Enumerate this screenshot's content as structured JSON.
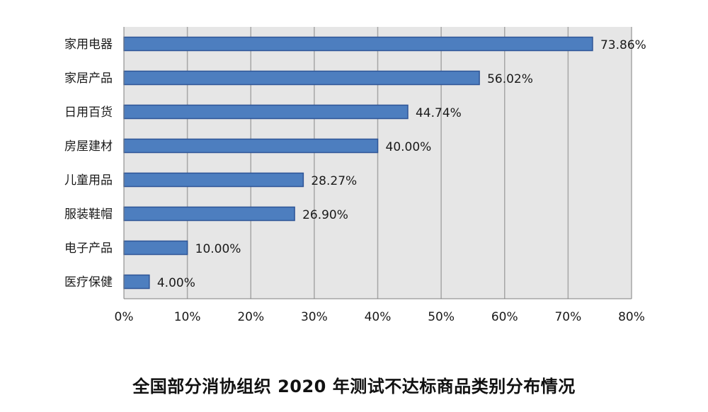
{
  "chart_data": {
    "type": "bar",
    "orientation": "horizontal",
    "title": "全国部分消协组织 2020 年测试不达标商品类别分布情况",
    "categories": [
      "家用电器",
      "家居产品",
      "日用百货",
      "房屋建材",
      "儿童用品",
      "服装鞋帽",
      "电子产品",
      "医疗保健"
    ],
    "values": [
      73.86,
      56.02,
      44.74,
      40.0,
      28.27,
      26.9,
      10.0,
      4.0
    ],
    "value_labels": [
      "73.86%",
      "56.02%",
      "44.74%",
      "40.00%",
      "28.27%",
      "26.90%",
      "10.00%",
      "4.00%"
    ],
    "xlim": [
      0,
      80
    ],
    "xticks": [
      0,
      10,
      20,
      30,
      40,
      50,
      60,
      70,
      80
    ],
    "xtick_labels": [
      "0%",
      "10%",
      "20%",
      "30%",
      "40%",
      "50%",
      "60%",
      "70%",
      "80%"
    ],
    "grid": "vertical",
    "legend": "none",
    "colors": {
      "bar_fill": "#4d7ebf",
      "bar_stroke": "#2f5597",
      "plot_bg": "#e6e6e6",
      "grid": "#a6a6a6"
    }
  }
}
